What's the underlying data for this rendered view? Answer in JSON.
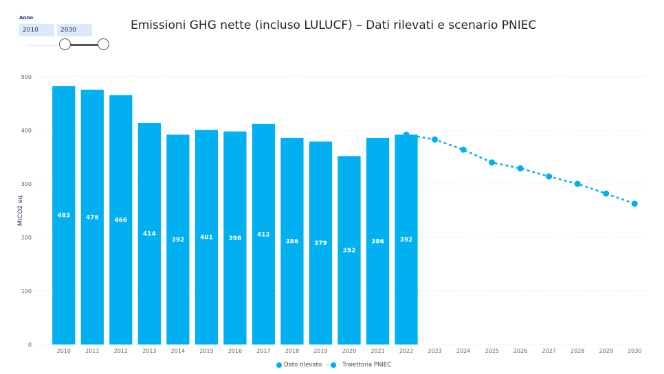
{
  "slicer": {
    "label": "Anno",
    "from": "2010",
    "to": "2030"
  },
  "chart_data": {
    "type": "bar+line",
    "title": "Emissioni GHG nette (incluso LULUCF) – Dati rilevati e scenario PNIEC",
    "xlabel": "",
    "ylabel": "MtCO2 eq",
    "ylim": [
      0,
      500
    ],
    "yticks": [
      0,
      100,
      200,
      300,
      400,
      500
    ],
    "grid": true,
    "legend_position": "bottom-center",
    "categories": [
      "2010",
      "2011",
      "2012",
      "2013",
      "2014",
      "2015",
      "2016",
      "2017",
      "2018",
      "2019",
      "2020",
      "2021",
      "2022",
      "2023",
      "2024",
      "2025",
      "2026",
      "2027",
      "2028",
      "2029",
      "2030"
    ],
    "series": [
      {
        "name": "Dato rilevato",
        "type": "bar",
        "color": "#00B0F0",
        "values": [
          483,
          476,
          466,
          414,
          392,
          401,
          398,
          412,
          386,
          379,
          352,
          386,
          392,
          null,
          null,
          null,
          null,
          null,
          null,
          null,
          null
        ],
        "data_labels": true
      },
      {
        "name": "Traiettoria PNIEC",
        "type": "line",
        "style": "dashed",
        "color": "#00B0F0",
        "values": [
          null,
          null,
          null,
          null,
          null,
          null,
          null,
          null,
          null,
          null,
          null,
          null,
          392,
          383,
          364,
          340,
          329,
          314,
          300,
          282,
          263
        ]
      }
    ]
  }
}
